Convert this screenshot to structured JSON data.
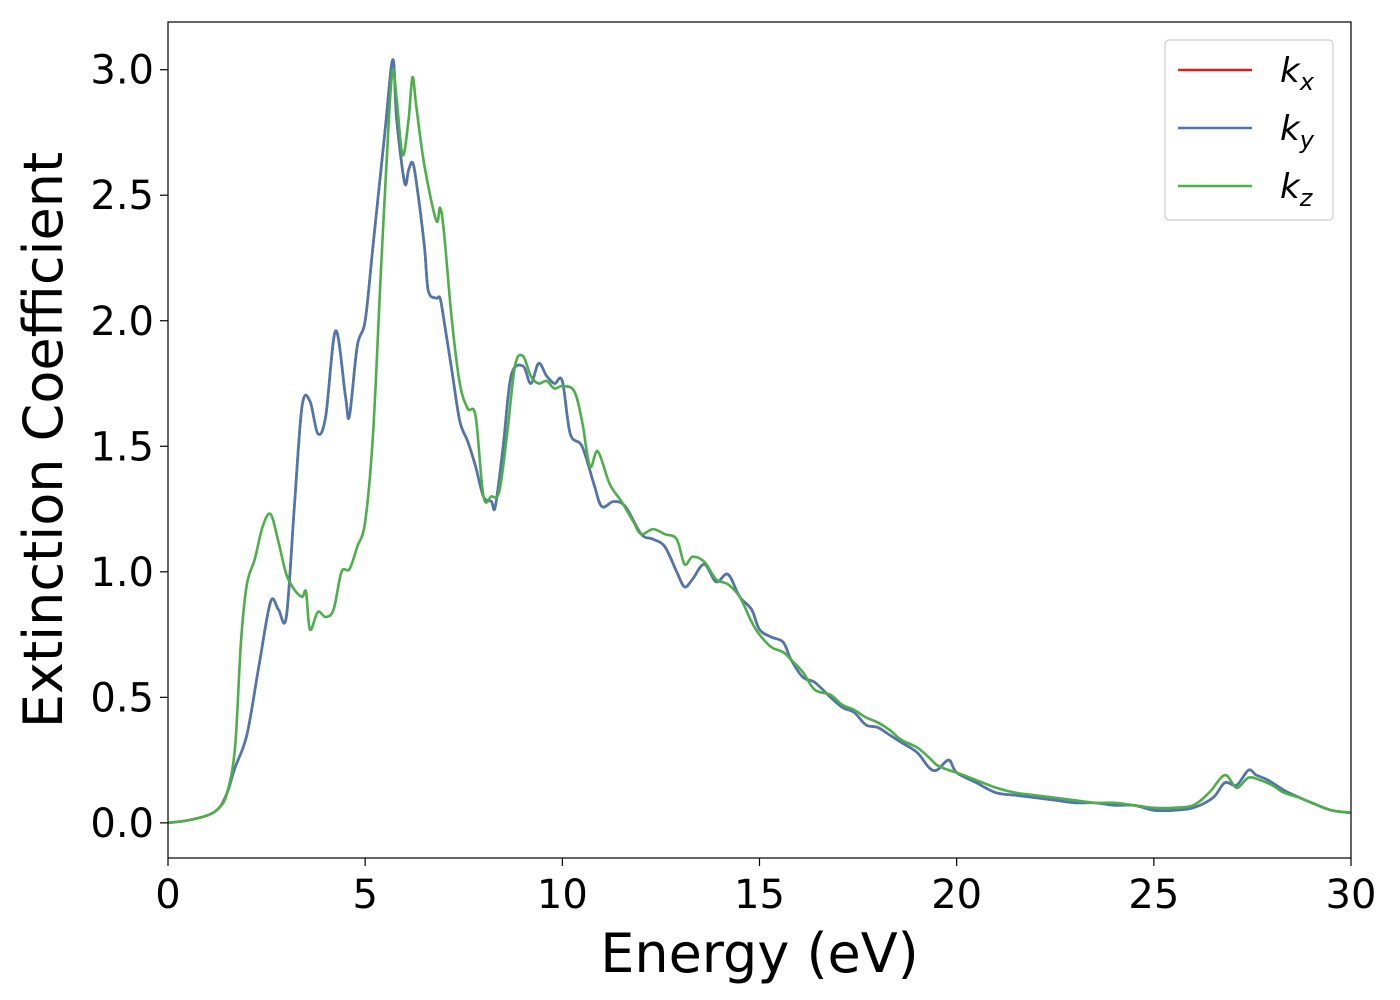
{
  "chart_data": {
    "type": "line",
    "xlabel": "Energy (eV)",
    "ylabel": "Extinction Coefficient",
    "xlim": [
      0,
      30
    ],
    "ylim": [
      -0.14,
      3.19
    ],
    "xticks": [
      0,
      5,
      10,
      15,
      20,
      25,
      30
    ],
    "yticks": [
      0.0,
      0.5,
      1.0,
      1.5,
      2.0,
      2.5,
      3.0
    ],
    "xtick_labels": [
      "0",
      "5",
      "10",
      "15",
      "20",
      "25",
      "30"
    ],
    "ytick_labels": [
      "0.0",
      "0.5",
      "1.0",
      "1.5",
      "2.0",
      "2.5",
      "3.0"
    ],
    "grid": false,
    "legend_position": "top-right",
    "series": [
      {
        "name": "k",
        "subscript": "x",
        "color": "#e41a1c",
        "x": [
          0,
          0.5,
          1.0,
          1.3,
          1.5,
          1.7,
          2.0,
          2.3,
          2.6,
          2.8,
          3.0,
          3.2,
          3.4,
          3.6,
          3.8,
          4.0,
          4.25,
          4.5,
          4.6,
          4.8,
          5.0,
          5.2,
          5.5,
          5.7,
          5.8,
          6.0,
          6.1,
          6.2,
          6.3,
          6.5,
          6.6,
          6.8,
          6.9,
          7.0,
          7.2,
          7.4,
          7.6,
          7.8,
          8.0,
          8.2,
          8.3,
          8.5,
          8.7,
          9.0,
          9.2,
          9.4,
          9.6,
          9.8,
          10.0,
          10.2,
          10.5,
          10.8,
          11.0,
          11.3,
          11.6,
          12.0,
          12.3,
          12.6,
          12.9,
          13.1,
          13.3,
          13.6,
          13.9,
          14.2,
          14.5,
          14.8,
          15.0,
          15.3,
          15.6,
          15.8,
          16.1,
          16.4,
          16.8,
          17.1,
          17.4,
          17.7,
          18.0,
          18.3,
          18.6,
          19.0,
          19.3,
          19.5,
          19.8,
          20.0,
          20.5,
          21.0,
          21.5,
          22.0,
          22.5,
          23.0,
          23.5,
          24.0,
          24.5,
          25.0,
          25.5,
          26.0,
          26.5,
          26.8,
          27.1,
          27.4,
          27.6,
          27.9,
          28.3,
          28.7,
          29.0,
          29.5,
          30.0
        ],
        "values": [
          0.0,
          0.01,
          0.03,
          0.06,
          0.12,
          0.22,
          0.35,
          0.62,
          0.88,
          0.85,
          0.82,
          1.25,
          1.66,
          1.68,
          1.55,
          1.62,
          1.96,
          1.7,
          1.62,
          1.9,
          2.0,
          2.3,
          2.75,
          3.04,
          2.8,
          2.55,
          2.6,
          2.63,
          2.55,
          2.3,
          2.12,
          2.09,
          2.09,
          2.0,
          1.8,
          1.6,
          1.52,
          1.42,
          1.3,
          1.28,
          1.26,
          1.5,
          1.78,
          1.82,
          1.75,
          1.83,
          1.78,
          1.75,
          1.76,
          1.55,
          1.5,
          1.35,
          1.26,
          1.28,
          1.26,
          1.15,
          1.13,
          1.1,
          1.0,
          0.94,
          0.97,
          1.03,
          0.96,
          0.99,
          0.9,
          0.85,
          0.77,
          0.74,
          0.72,
          0.65,
          0.58,
          0.56,
          0.5,
          0.46,
          0.44,
          0.39,
          0.38,
          0.35,
          0.32,
          0.28,
          0.22,
          0.21,
          0.25,
          0.2,
          0.16,
          0.12,
          0.11,
          0.1,
          0.09,
          0.08,
          0.08,
          0.07,
          0.07,
          0.05,
          0.05,
          0.06,
          0.1,
          0.16,
          0.15,
          0.21,
          0.19,
          0.17,
          0.13,
          0.1,
          0.08,
          0.05,
          0.04
        ]
      },
      {
        "name": "k",
        "subscript": "y",
        "color": "#4a78b0",
        "x": [
          0,
          0.5,
          1.0,
          1.3,
          1.5,
          1.7,
          2.0,
          2.3,
          2.6,
          2.8,
          3.0,
          3.2,
          3.4,
          3.6,
          3.8,
          4.0,
          4.25,
          4.5,
          4.6,
          4.8,
          5.0,
          5.2,
          5.5,
          5.7,
          5.8,
          6.0,
          6.1,
          6.2,
          6.3,
          6.5,
          6.6,
          6.8,
          6.9,
          7.0,
          7.2,
          7.4,
          7.6,
          7.8,
          8.0,
          8.2,
          8.3,
          8.5,
          8.7,
          9.0,
          9.2,
          9.4,
          9.6,
          9.8,
          10.0,
          10.2,
          10.5,
          10.8,
          11.0,
          11.3,
          11.6,
          12.0,
          12.3,
          12.6,
          12.9,
          13.1,
          13.3,
          13.6,
          13.9,
          14.2,
          14.5,
          14.8,
          15.0,
          15.3,
          15.6,
          15.8,
          16.1,
          16.4,
          16.8,
          17.1,
          17.4,
          17.7,
          18.0,
          18.3,
          18.6,
          19.0,
          19.3,
          19.5,
          19.8,
          20.0,
          20.5,
          21.0,
          21.5,
          22.0,
          22.5,
          23.0,
          23.5,
          24.0,
          24.5,
          25.0,
          25.5,
          26.0,
          26.5,
          26.8,
          27.1,
          27.4,
          27.6,
          27.9,
          28.3,
          28.7,
          29.0,
          29.5,
          30.0
        ],
        "values": [
          0.0,
          0.01,
          0.03,
          0.06,
          0.12,
          0.22,
          0.35,
          0.62,
          0.88,
          0.85,
          0.82,
          1.25,
          1.66,
          1.68,
          1.55,
          1.62,
          1.96,
          1.7,
          1.62,
          1.9,
          2.0,
          2.3,
          2.75,
          3.04,
          2.8,
          2.55,
          2.6,
          2.63,
          2.55,
          2.3,
          2.12,
          2.09,
          2.09,
          2.0,
          1.8,
          1.6,
          1.52,
          1.42,
          1.3,
          1.28,
          1.26,
          1.5,
          1.78,
          1.82,
          1.75,
          1.83,
          1.78,
          1.75,
          1.76,
          1.55,
          1.5,
          1.35,
          1.26,
          1.28,
          1.26,
          1.15,
          1.13,
          1.1,
          1.0,
          0.94,
          0.97,
          1.03,
          0.96,
          0.99,
          0.9,
          0.85,
          0.77,
          0.74,
          0.72,
          0.65,
          0.58,
          0.56,
          0.5,
          0.46,
          0.44,
          0.39,
          0.38,
          0.35,
          0.32,
          0.28,
          0.22,
          0.21,
          0.25,
          0.2,
          0.16,
          0.12,
          0.11,
          0.1,
          0.09,
          0.08,
          0.08,
          0.07,
          0.07,
          0.05,
          0.05,
          0.06,
          0.1,
          0.16,
          0.15,
          0.21,
          0.19,
          0.17,
          0.13,
          0.1,
          0.08,
          0.05,
          0.04
        ]
      },
      {
        "name": "k",
        "subscript": "z",
        "color": "#4daf4a",
        "x": [
          0,
          0.5,
          1.0,
          1.3,
          1.5,
          1.7,
          1.85,
          2.0,
          2.2,
          2.4,
          2.6,
          2.8,
          3.0,
          3.2,
          3.4,
          3.5,
          3.6,
          3.8,
          4.0,
          4.2,
          4.4,
          4.6,
          4.8,
          5.0,
          5.2,
          5.4,
          5.6,
          5.7,
          5.8,
          5.95,
          6.1,
          6.2,
          6.3,
          6.5,
          6.8,
          6.9,
          7.0,
          7.2,
          7.4,
          7.6,
          7.8,
          8.0,
          8.2,
          8.4,
          8.6,
          8.8,
          9.0,
          9.2,
          9.4,
          9.6,
          9.8,
          10.0,
          10.3,
          10.5,
          10.7,
          10.9,
          11.2,
          11.5,
          11.8,
          12.0,
          12.3,
          12.6,
          12.9,
          13.1,
          13.3,
          13.6,
          13.9,
          14.2,
          14.5,
          14.8,
          15.0,
          15.3,
          15.6,
          15.8,
          16.1,
          16.4,
          16.8,
          17.1,
          17.4,
          17.7,
          18.0,
          18.3,
          18.6,
          19.0,
          19.3,
          19.5,
          19.8,
          20.0,
          20.5,
          21.0,
          21.5,
          22.0,
          22.5,
          23.0,
          23.5,
          24.0,
          24.5,
          25.0,
          25.5,
          26.0,
          26.4,
          26.8,
          27.1,
          27.4,
          27.7,
          28.0,
          28.3,
          28.7,
          29.0,
          29.5,
          30.0
        ],
        "values": [
          0.0,
          0.01,
          0.03,
          0.06,
          0.12,
          0.3,
          0.72,
          0.95,
          1.05,
          1.18,
          1.23,
          1.12,
          0.99,
          0.93,
          0.9,
          0.92,
          0.77,
          0.84,
          0.82,
          0.85,
          1.0,
          1.01,
          1.1,
          1.2,
          1.55,
          2.2,
          2.8,
          3.0,
          2.88,
          2.66,
          2.8,
          2.97,
          2.85,
          2.62,
          2.4,
          2.45,
          2.35,
          2.0,
          1.75,
          1.65,
          1.62,
          1.3,
          1.3,
          1.32,
          1.55,
          1.82,
          1.86,
          1.78,
          1.75,
          1.76,
          1.73,
          1.74,
          1.72,
          1.6,
          1.42,
          1.48,
          1.35,
          1.28,
          1.2,
          1.15,
          1.17,
          1.15,
          1.13,
          1.03,
          1.06,
          1.04,
          0.97,
          0.95,
          0.9,
          0.8,
          0.75,
          0.7,
          0.68,
          0.65,
          0.6,
          0.53,
          0.51,
          0.47,
          0.45,
          0.42,
          0.4,
          0.37,
          0.33,
          0.3,
          0.26,
          0.23,
          0.21,
          0.2,
          0.17,
          0.14,
          0.12,
          0.11,
          0.1,
          0.09,
          0.08,
          0.08,
          0.07,
          0.06,
          0.06,
          0.07,
          0.12,
          0.19,
          0.14,
          0.18,
          0.17,
          0.15,
          0.12,
          0.1,
          0.08,
          0.05,
          0.04
        ]
      }
    ]
  }
}
